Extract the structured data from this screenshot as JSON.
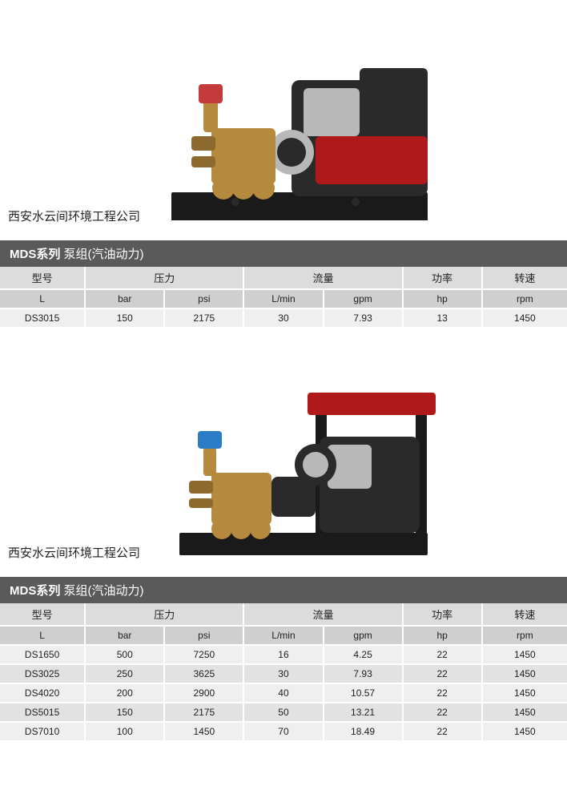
{
  "caption": "西安水云间环境工程公司",
  "title_series": "MDS系列",
  "title_rest": " 泵组(汽油动力)",
  "headers": {
    "model": "型号",
    "pressure": "压力",
    "flow": "流量",
    "power": "功率",
    "speed": "转速"
  },
  "units": {
    "model": "L",
    "bar": "bar",
    "psi": "psi",
    "lmin": "L/min",
    "gpm": "gpm",
    "hp": "hp",
    "rpm": "rpm"
  },
  "table1": {
    "rows": [
      {
        "model": "DS3015",
        "bar": "150",
        "psi": "2175",
        "lmin": "30",
        "gpm": "7.93",
        "hp": "13",
        "rpm": "1450"
      }
    ]
  },
  "table2": {
    "rows": [
      {
        "model": "DS1650",
        "bar": "500",
        "psi": "7250",
        "lmin": "16",
        "gpm": "4.25",
        "hp": "22",
        "rpm": "1450"
      },
      {
        "model": "DS3025",
        "bar": "250",
        "psi": "3625",
        "lmin": "30",
        "gpm": "7.93",
        "hp": "22",
        "rpm": "1450"
      },
      {
        "model": "DS4020",
        "bar": "200",
        "psi": "2900",
        "lmin": "40",
        "gpm": "10.57",
        "hp": "22",
        "rpm": "1450"
      },
      {
        "model": "DS5015",
        "bar": "150",
        "psi": "2175",
        "lmin": "50",
        "gpm": "13.21",
        "hp": "22",
        "rpm": "1450"
      },
      {
        "model": "DS7010",
        "bar": "100",
        "psi": "1450",
        "lmin": "70",
        "gpm": "18.49",
        "hp": "22",
        "rpm": "1450"
      }
    ]
  },
  "col_widths": {
    "model": "15%",
    "bar": "14%",
    "psi": "14%",
    "lmin": "14%",
    "gpm": "14%",
    "hp": "14%",
    "rpm": "15%"
  }
}
